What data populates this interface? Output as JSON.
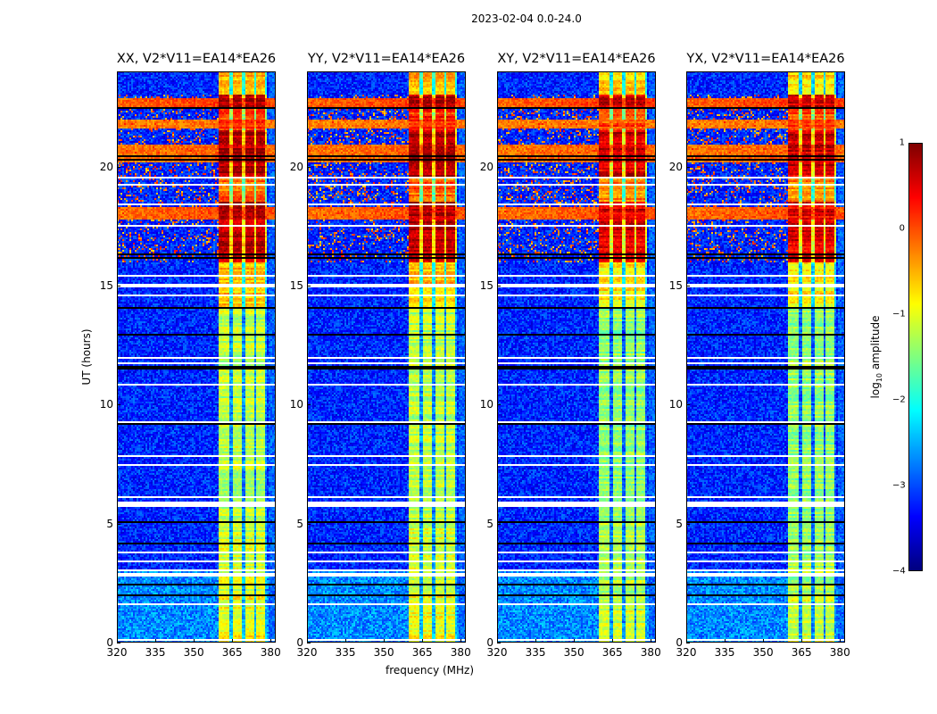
{
  "figure": {
    "suptitle": "2023-02-04 0.0-24.0",
    "xlabel": "frequency (MHz)",
    "ylabel": "UT (hours)",
    "colorbar": {
      "label_prefix": "log",
      "label_sub": "10",
      "label_suffix": " amplitude",
      "ticks": [
        "1",
        "0",
        "−1",
        "−2",
        "−3",
        "−4"
      ],
      "tick_values": [
        1,
        0,
        -1,
        -2,
        -3,
        -4
      ],
      "range": [
        -4,
        1
      ],
      "colormap": "jet"
    }
  },
  "chart_data": {
    "type": "heatmap",
    "title": "2023-02-04 0.0-24.0",
    "xlabel": "frequency (MHz)",
    "ylabel": "UT (hours)",
    "xlim": [
      320,
      382
    ],
    "ylim": [
      0,
      24
    ],
    "xticks": [
      "320",
      "335",
      "350",
      "365",
      "380"
    ],
    "xtick_values": [
      320,
      335,
      350,
      365,
      380
    ],
    "yticks": [
      "0",
      "5",
      "10",
      "15",
      "20"
    ],
    "ytick_values": [
      0,
      5,
      10,
      15,
      20
    ],
    "colorbar_range": [
      -4,
      1
    ],
    "colorbar_label": "log10 amplitude",
    "panels": [
      {
        "title": "XX, V2*V11=EA14*EA26",
        "pol": "XX"
      },
      {
        "title": "YY, V2*V11=EA14*EA26",
        "pol": "YY"
      },
      {
        "title": "XY, V2*V11=EA14*EA26",
        "pol": "XY"
      },
      {
        "title": "YX, V2*V11=EA14*EA26",
        "pol": "YX"
      }
    ],
    "background_level": -3.2,
    "rfi_band_mhz": [
      359.5,
      378.5
    ],
    "rfi_subband_gaps_mhz": [
      364.5,
      369.5,
      374.0,
      378.5
    ],
    "rfi_level_by_time": [
      {
        "t": [
          0,
          2
        ],
        "level": -0.9
      },
      {
        "t": [
          2,
          5
        ],
        "level": -1.1
      },
      {
        "t": [
          5,
          14
        ],
        "level": -1.2
      },
      {
        "t": [
          14,
          16
        ],
        "level": -0.6
      },
      {
        "t": [
          16,
          18.5
        ],
        "level": 0.7
      },
      {
        "t": [
          18.5,
          19.5
        ],
        "level": -0.1
      },
      {
        "t": [
          19.5,
          21.5
        ],
        "level": 0.8
      },
      {
        "t": [
          21.5,
          22.5
        ],
        "level": 0.2
      },
      {
        "t": [
          22.5,
          23
        ],
        "level": 0.8
      },
      {
        "t": [
          23,
          24
        ],
        "level": -0.5
      }
    ],
    "broadband_rfi_hours": [
      {
        "t": [
          17.8,
          18.3
        ],
        "level": 0.3
      },
      {
        "t": [
          20.2,
          20.9
        ],
        "level": 0.2
      },
      {
        "t": [
          21.6,
          22.0
        ],
        "level": 0.1
      },
      {
        "t": [
          22.5,
          22.9
        ],
        "level": 0.4
      }
    ],
    "flagged_hours": [
      {
        "t": [
          14.9,
          15.05
        ],
        "kind": "white"
      },
      {
        "t": [
          5.7,
          5.85
        ],
        "kind": "white"
      },
      {
        "t": [
          2.75,
          2.95
        ],
        "kind": "white"
      },
      {
        "t": [
          14.05,
          14.1
        ],
        "kind": "black"
      },
      {
        "t": [
          1.55,
          1.6
        ],
        "kind": "black"
      },
      {
        "t": [
          4.15,
          4.2
        ],
        "kind": "black"
      }
    ]
  }
}
